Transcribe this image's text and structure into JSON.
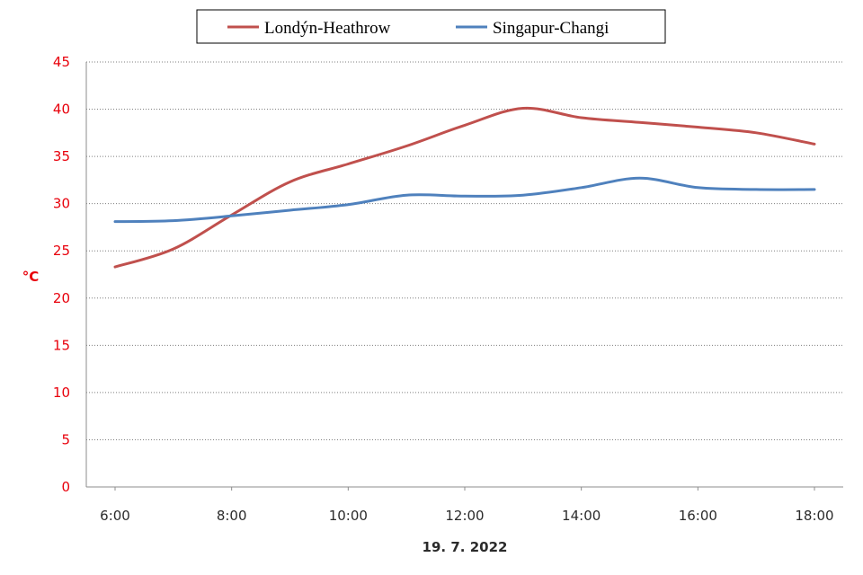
{
  "chart_data": {
    "type": "line",
    "title": "",
    "xlabel": "19. 7. 2022",
    "ylabel": "°C",
    "x": [
      "6:00",
      "7:00",
      "8:00",
      "9:00",
      "10:00",
      "11:00",
      "12:00",
      "13:00",
      "14:00",
      "15:00",
      "16:00",
      "17:00",
      "18:00"
    ],
    "x_tick_labels": [
      "6:00",
      "8:00",
      "10:00",
      "12:00",
      "14:00",
      "16:00",
      "18:00"
    ],
    "ylim": [
      0,
      45
    ],
    "y_ticks": [
      0,
      5,
      10,
      15,
      20,
      25,
      30,
      35,
      40,
      45
    ],
    "grid": "horizontal dotted",
    "legend_position": "top-center",
    "series": [
      {
        "name": "Londýn-Heathrow",
        "color": "#c0504d",
        "values": [
          23.3,
          25.2,
          28.8,
          32.3,
          34.2,
          36.1,
          38.3,
          40.1,
          39.1,
          38.6,
          38.1,
          37.5,
          36.3
        ]
      },
      {
        "name": "Singapur-Changi",
        "color": "#4f81bd",
        "values": [
          28.1,
          28.2,
          28.7,
          29.3,
          29.9,
          30.9,
          30.8,
          30.9,
          31.7,
          32.7,
          31.7,
          31.5,
          31.5
        ]
      }
    ]
  }
}
